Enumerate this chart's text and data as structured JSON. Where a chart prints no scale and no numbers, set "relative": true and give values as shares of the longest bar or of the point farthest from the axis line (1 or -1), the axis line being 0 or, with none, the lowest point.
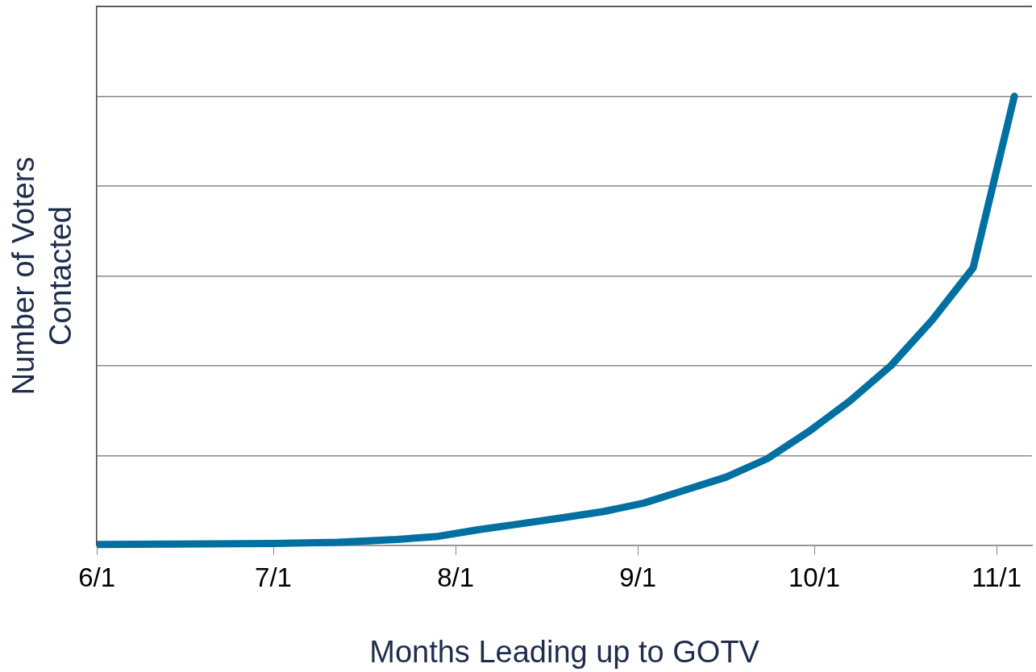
{
  "chart_data": {
    "type": "line",
    "relative": true,
    "xlabel": "Months Leading up to GOTV",
    "ylabel": "Number of Voters Contacted",
    "x": [
      "--06-01",
      "--07-01",
      "--07-12",
      "--07-22",
      "--07-29",
      "--08-05",
      "--08-11",
      "--08-19",
      "--08-26",
      "--09-02",
      "--09-09",
      "--09-16",
      "--09-23",
      "--09-30",
      "--10-07",
      "--10-14",
      "--10-21",
      "--10-28",
      "--11-04"
    ],
    "series": [
      {
        "color": "#0070a0",
        "values": [
          0.002,
          0.004,
          0.007,
          0.013,
          0.02,
          0.035,
          0.046,
          0.061,
          0.075,
          0.094,
          0.123,
          0.152,
          0.193,
          0.253,
          0.321,
          0.4,
          0.501,
          0.618,
          1
        ]
      }
    ],
    "xlim": [
      "--06-01",
      "--11-07"
    ],
    "xticks": [
      {
        "value": "--06-01",
        "label": "6/1"
      },
      {
        "value": "--07-01",
        "label": "7/1"
      },
      {
        "value": "--08-01",
        "label": "8/1"
      },
      {
        "value": "--09-01",
        "label": "9/1"
      },
      {
        "value": "--10-01",
        "label": "10/1"
      },
      {
        "value": "--11-01",
        "label": "11/1"
      }
    ],
    "grid": "y",
    "legend": false,
    "marker": "none",
    "line_style": "solid"
  }
}
